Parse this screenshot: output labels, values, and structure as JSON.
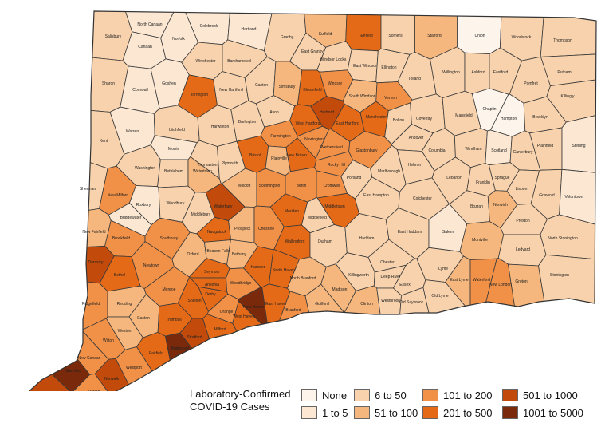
{
  "colors": {
    "none": "#fdf5ec",
    "c1_5": "#fbe7d2",
    "c6_50": "#f8d2ac",
    "c51_100": "#f5b77e",
    "c101_200": "#f19148",
    "c201_500": "#e56a18",
    "c501_1000": "#c24b0c",
    "c1001_5000": "#7a2a0a"
  },
  "legend": {
    "title_line1": "Laboratory-Confirmed",
    "title_line2": "COVID-19 Cases",
    "items": [
      {
        "label": "None",
        "color": "#fdf5ec"
      },
      {
        "label": "1 to 5",
        "color": "#fbe7d2"
      },
      {
        "label": "6 to 50",
        "color": "#f8d2ac"
      },
      {
        "label": "51 to 100",
        "color": "#f5b77e"
      },
      {
        "label": "101 to 200",
        "color": "#f19148"
      },
      {
        "label": "201 to 500",
        "color": "#e56a18"
      },
      {
        "label": "501 to 1000",
        "color": "#c24b0c"
      },
      {
        "label": "1001 to 5000",
        "color": "#7a2a0a"
      }
    ]
  },
  "towns": [
    {
      "name": "Salisbury",
      "cat": "c6_50"
    },
    {
      "name": "North Canaan",
      "cat": "c1_5"
    },
    {
      "name": "Canaan",
      "cat": "c1_5"
    },
    {
      "name": "Norfolk",
      "cat": "c1_5"
    },
    {
      "name": "Colebrook",
      "cat": "c1_5"
    },
    {
      "name": "Hartland",
      "cat": "c1_5"
    },
    {
      "name": "Granby",
      "cat": "c6_50"
    },
    {
      "name": "East Granby",
      "cat": "c6_50"
    },
    {
      "name": "Suffield",
      "cat": "c51_100"
    },
    {
      "name": "Enfield",
      "cat": "c201_500"
    },
    {
      "name": "Somers",
      "cat": "c6_50"
    },
    {
      "name": "Stafford",
      "cat": "c51_100"
    },
    {
      "name": "Union",
      "cat": "none"
    },
    {
      "name": "Woodstock",
      "cat": "c6_50"
    },
    {
      "name": "Thompson",
      "cat": "c6_50"
    },
    {
      "name": "Sharon",
      "cat": "c6_50"
    },
    {
      "name": "Cornwall",
      "cat": "c1_5"
    },
    {
      "name": "Goshen",
      "cat": "c1_5"
    },
    {
      "name": "Torrington",
      "cat": "c201_500"
    },
    {
      "name": "Winchester",
      "cat": "c6_50"
    },
    {
      "name": "Barkhamsted",
      "cat": "c6_50"
    },
    {
      "name": "New Hartford",
      "cat": "c6_50"
    },
    {
      "name": "Canton",
      "cat": "c6_50"
    },
    {
      "name": "Simsbury",
      "cat": "c51_100"
    },
    {
      "name": "Windsor Locks",
      "cat": "c6_50"
    },
    {
      "name": "Bloomfield",
      "cat": "c201_500"
    },
    {
      "name": "Windsor",
      "cat": "c101_200"
    },
    {
      "name": "East Windsor",
      "cat": "c6_50"
    },
    {
      "name": "Ellington",
      "cat": "c6_50"
    },
    {
      "name": "Tolland",
      "cat": "c6_50"
    },
    {
      "name": "Willington",
      "cat": "c6_50"
    },
    {
      "name": "Ashford",
      "cat": "c6_50"
    },
    {
      "name": "Eastford",
      "cat": "c6_50"
    },
    {
      "name": "Pomfret",
      "cat": "c6_50"
    },
    {
      "name": "Putnam",
      "cat": "c6_50"
    },
    {
      "name": "Killingly",
      "cat": "c6_50"
    },
    {
      "name": "Kent",
      "cat": "c6_50"
    },
    {
      "name": "Warren",
      "cat": "c1_5"
    },
    {
      "name": "Litchfield",
      "cat": "c6_50"
    },
    {
      "name": "Harwinton",
      "cat": "c6_50"
    },
    {
      "name": "Burlington",
      "cat": "c6_50"
    },
    {
      "name": "Avon",
      "cat": "c6_50"
    },
    {
      "name": "West Hartford",
      "cat": "c201_500"
    },
    {
      "name": "Hartford",
      "cat": "c501_1000"
    },
    {
      "name": "East Hartford",
      "cat": "c201_500"
    },
    {
      "name": "South Windsor",
      "cat": "c51_100"
    },
    {
      "name": "Vernon",
      "cat": "c101_200"
    },
    {
      "name": "Manchester",
      "cat": "c201_500"
    },
    {
      "name": "Bolton",
      "cat": "c6_50"
    },
    {
      "name": "Coventry",
      "cat": "c6_50"
    },
    {
      "name": "Mansfield",
      "cat": "c6_50"
    },
    {
      "name": "Chaplin",
      "cat": "none"
    },
    {
      "name": "Hampton",
      "cat": "none"
    },
    {
      "name": "Brooklyn",
      "cat": "c6_50"
    },
    {
      "name": "Morris",
      "cat": "c1_5"
    },
    {
      "name": "Washington",
      "cat": "c6_50"
    },
    {
      "name": "Bethlehem",
      "cat": "c6_50"
    },
    {
      "name": "Thomaston",
      "cat": "c6_50"
    },
    {
      "name": "Plymouth",
      "cat": "c6_50"
    },
    {
      "name": "Bristol",
      "cat": "c201_500"
    },
    {
      "name": "Farmington",
      "cat": "c101_200"
    },
    {
      "name": "Plainville",
      "cat": "c51_100"
    },
    {
      "name": "New Britain",
      "cat": "c201_500"
    },
    {
      "name": "Newington",
      "cat": "c101_200"
    },
    {
      "name": "Wethersfield",
      "cat": "c101_200"
    },
    {
      "name": "Rocky Hill",
      "cat": "c101_200"
    },
    {
      "name": "Glastonbury",
      "cat": "c101_200"
    },
    {
      "name": "Andover",
      "cat": "c6_50"
    },
    {
      "name": "Columbia",
      "cat": "c6_50"
    },
    {
      "name": "Windham",
      "cat": "c6_50"
    },
    {
      "name": "Scotland",
      "cat": "c1_5"
    },
    {
      "name": "Canterbury",
      "cat": "c6_50"
    },
    {
      "name": "Plainfield",
      "cat": "c6_50"
    },
    {
      "name": "Sterling",
      "cat": "c1_5"
    },
    {
      "name": "Sherman",
      "cat": "c6_50"
    },
    {
      "name": "New Milford",
      "cat": "c101_200"
    },
    {
      "name": "Roxbury",
      "cat": "c1_5"
    },
    {
      "name": "Woodbury",
      "cat": "c6_50"
    },
    {
      "name": "Watertown",
      "cat": "c51_100"
    },
    {
      "name": "Wolcott",
      "cat": "c51_100"
    },
    {
      "name": "Southington",
      "cat": "c101_200"
    },
    {
      "name": "Berlin",
      "cat": "c101_200"
    },
    {
      "name": "Cromwell",
      "cat": "c101_200"
    },
    {
      "name": "Portland",
      "cat": "c6_50"
    },
    {
      "name": "Marlborough",
      "cat": "c6_50"
    },
    {
      "name": "Hebron",
      "cat": "c6_50"
    },
    {
      "name": "Lebanon",
      "cat": "c6_50"
    },
    {
      "name": "Franklin",
      "cat": "c6_50"
    },
    {
      "name": "Sprague",
      "cat": "c6_50"
    },
    {
      "name": "Lisbon",
      "cat": "c6_50"
    },
    {
      "name": "Griswold",
      "cat": "c6_50"
    },
    {
      "name": "Voluntown",
      "cat": "c1_5"
    },
    {
      "name": "Bridgewater",
      "cat": "c1_5"
    },
    {
      "name": "Middlebury",
      "cat": "c6_50"
    },
    {
      "name": "Waterbury",
      "cat": "c501_1000"
    },
    {
      "name": "Meriden",
      "cat": "c201_500"
    },
    {
      "name": "Middlefield",
      "cat": "c6_50"
    },
    {
      "name": "Middletown",
      "cat": "c201_500"
    },
    {
      "name": "East Hampton",
      "cat": "c6_50"
    },
    {
      "name": "Colchester",
      "cat": "c6_50"
    },
    {
      "name": "Bozrah",
      "cat": "c6_50"
    },
    {
      "name": "Norwich",
      "cat": "c51_100"
    },
    {
      "name": "Preston",
      "cat": "c6_50"
    },
    {
      "name": "New Fairfield",
      "cat": "c51_100"
    },
    {
      "name": "Brookfield",
      "cat": "c101_200"
    },
    {
      "name": "Southbury",
      "cat": "c101_200"
    },
    {
      "name": "Naugatuck",
      "cat": "c201_500"
    },
    {
      "name": "Prospect",
      "cat": "c51_100"
    },
    {
      "name": "Cheshire",
      "cat": "c101_200"
    },
    {
      "name": "Wallingford",
      "cat": "c201_500"
    },
    {
      "name": "Durham",
      "cat": "c6_50"
    },
    {
      "name": "Haddam",
      "cat": "c6_50"
    },
    {
      "name": "East Haddam",
      "cat": "c6_50"
    },
    {
      "name": "Salem",
      "cat": "c1_5"
    },
    {
      "name": "Montville",
      "cat": "c51_100"
    },
    {
      "name": "Ledyard",
      "cat": "c6_50"
    },
    {
      "name": "North Stonington",
      "cat": "c6_50"
    },
    {
      "name": "Danbury",
      "cat": "c501_1000"
    },
    {
      "name": "Bethel",
      "cat": "c201_500"
    },
    {
      "name": "Newtown",
      "cat": "c101_200"
    },
    {
      "name": "Oxford",
      "cat": "c51_100"
    },
    {
      "name": "Beacon Falls",
      "cat": "c51_100"
    },
    {
      "name": "Bethany",
      "cat": "c51_100"
    },
    {
      "name": "Hamden",
      "cat": "c201_500"
    },
    {
      "name": "North Haven",
      "cat": "c201_500"
    },
    {
      "name": "North Branford",
      "cat": "c51_100"
    },
    {
      "name": "Killingworth",
      "cat": "c6_50"
    },
    {
      "name": "Chester",
      "cat": "c6_50"
    },
    {
      "name": "Deep River",
      "cat": "c6_50"
    },
    {
      "name": "Essex",
      "cat": "c6_50"
    },
    {
      "name": "Lyme",
      "cat": "c6_50"
    },
    {
      "name": "East Lyme",
      "cat": "c51_100"
    },
    {
      "name": "Waterford",
      "cat": "c101_200"
    },
    {
      "name": "New London",
      "cat": "c101_200"
    },
    {
      "name": "Groton",
      "cat": "c51_100"
    },
    {
      "name": "Stonington",
      "cat": "c6_50"
    },
    {
      "name": "Ridgefield",
      "cat": "c101_200"
    },
    {
      "name": "Redding",
      "cat": "c51_100"
    },
    {
      "name": "Monroe",
      "cat": "c101_200"
    },
    {
      "name": "Seymour",
      "cat": "c201_500"
    },
    {
      "name": "Ansonia",
      "cat": "c201_500"
    },
    {
      "name": "Derby",
      "cat": "c201_500"
    },
    {
      "name": "Woodbridge",
      "cat": "c101_200"
    },
    {
      "name": "Shelton",
      "cat": "c201_500"
    },
    {
      "name": "New Haven",
      "cat": "c1001_5000"
    },
    {
      "name": "East Haven",
      "cat": "c201_500"
    },
    {
      "name": "Branford",
      "cat": "c101_200"
    },
    {
      "name": "Guilford",
      "cat": "c51_100"
    },
    {
      "name": "Madison",
      "cat": "c51_100"
    },
    {
      "name": "Clinton",
      "cat": "c51_100"
    },
    {
      "name": "Westbrook",
      "cat": "c6_50"
    },
    {
      "name": "Old Saybrook",
      "cat": "c6_50"
    },
    {
      "name": "Old Lyme",
      "cat": "c6_50"
    },
    {
      "name": "Wilton",
      "cat": "c101_200"
    },
    {
      "name": "Weston",
      "cat": "c51_100"
    },
    {
      "name": "Easton",
      "cat": "c51_100"
    },
    {
      "name": "Trumbull",
      "cat": "c201_500"
    },
    {
      "name": "Orange",
      "cat": "c101_200"
    },
    {
      "name": "West Haven",
      "cat": "c201_500"
    },
    {
      "name": "Milford",
      "cat": "c201_500"
    },
    {
      "name": "Stratford",
      "cat": "c501_1000"
    },
    {
      "name": "Fairfield",
      "cat": "c201_500"
    },
    {
      "name": "Bridgeport",
      "cat": "c1001_5000"
    },
    {
      "name": "Westport",
      "cat": "c101_200"
    },
    {
      "name": "New Canaan",
      "cat": "c101_200"
    },
    {
      "name": "Stamford",
      "cat": "c1001_5000"
    },
    {
      "name": "Darien",
      "cat": "c101_200"
    },
    {
      "name": "Norwalk",
      "cat": "c501_1000"
    },
    {
      "name": "Greenwich",
      "cat": "c501_1000"
    }
  ]
}
